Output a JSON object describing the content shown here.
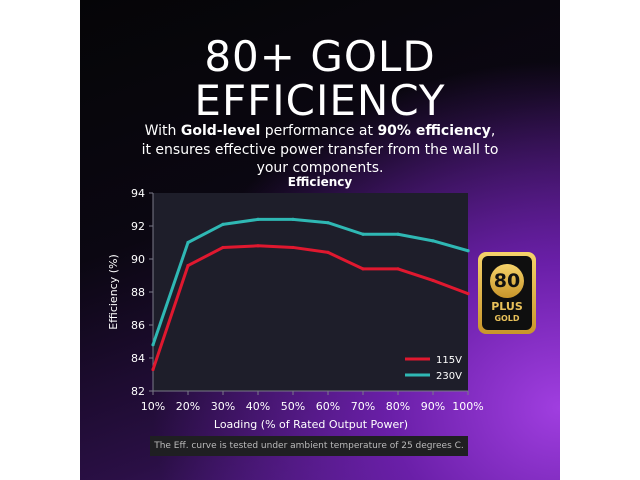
{
  "headline": {
    "line1": "80+ GOLD",
    "line2": "EFFICIENCY"
  },
  "description": {
    "l1_a": "With ",
    "l1_b": "Gold-level",
    "l1_c": " performance at ",
    "l1_d": "90% efficiency",
    "l1_e": ",",
    "l2": "it ensures effective power transfer from the wall to",
    "l3": "your components."
  },
  "footnote": "The Eff. curve is tested under ambient temperature of 25 degrees C.",
  "badge": {
    "number": "80",
    "plus": "PLUS",
    "tier": "GOLD"
  },
  "colors": {
    "series_115v": "#e0182f",
    "series_230v": "#2fb8b4",
    "plot_bg": "#1e1e2a",
    "badge_gold": "#e9c15a"
  },
  "chart_data": {
    "type": "line",
    "title": "Efficiency",
    "xlabel": "Loading (% of Rated Output Power)",
    "ylabel": "Efficiency (%)",
    "x": [
      "10%",
      "20%",
      "30%",
      "40%",
      "50%",
      "60%",
      "70%",
      "80%",
      "90%",
      "100%"
    ],
    "yticks": [
      "82",
      "84",
      "86",
      "88",
      "90",
      "92",
      "94"
    ],
    "ylim": [
      82,
      94
    ],
    "grid": false,
    "legend_position": "bottom-right",
    "series": [
      {
        "name": "115V",
        "color": "#e0182f",
        "values": [
          83.3,
          89.6,
          90.7,
          90.8,
          90.7,
          90.4,
          89.4,
          89.4,
          88.7,
          87.9
        ]
      },
      {
        "name": "230V",
        "color": "#2fb8b4",
        "values": [
          84.8,
          91.0,
          92.1,
          92.4,
          92.4,
          92.2,
          91.5,
          91.5,
          91.1,
          90.5
        ]
      }
    ]
  }
}
